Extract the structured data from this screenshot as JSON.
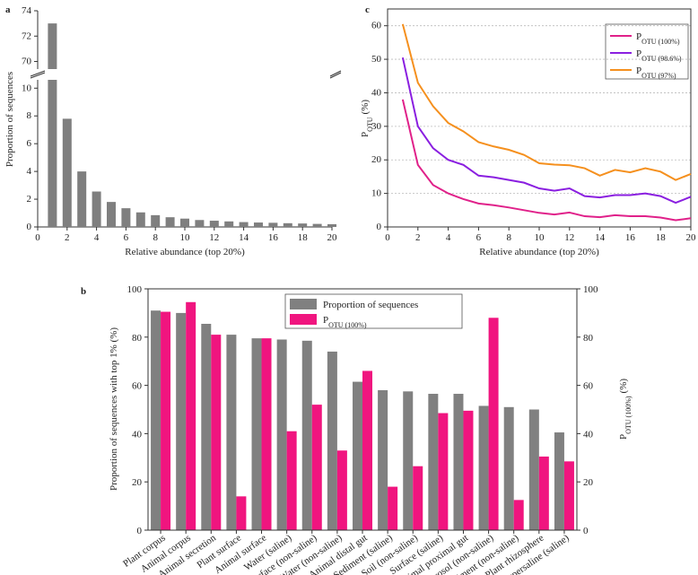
{
  "chart_data": [
    {
      "type": "bar",
      "label": "a",
      "xlabel": "Relative abundance (top 20%)",
      "ylabel": "Proportion of sequences",
      "x": [
        1,
        2,
        3,
        4,
        5,
        6,
        7,
        8,
        9,
        10,
        11,
        12,
        13,
        14,
        15,
        16,
        17,
        18,
        19,
        20
      ],
      "values": [
        73,
        7.8,
        4.0,
        2.55,
        1.8,
        1.35,
        1.05,
        0.85,
        0.7,
        0.6,
        0.5,
        0.45,
        0.4,
        0.35,
        0.32,
        0.3,
        0.27,
        0.25,
        0.22,
        0.2
      ],
      "color": "#7f7f7f",
      "xlim": [
        0,
        20
      ],
      "xticks": [
        0,
        2,
        4,
        6,
        8,
        10,
        12,
        14,
        16,
        18,
        20
      ],
      "ylim": [
        0,
        74
      ],
      "y_break": [
        10.6,
        69.4
      ],
      "yticks": [
        0,
        2,
        4,
        6,
        8,
        10,
        70,
        72,
        74
      ]
    },
    {
      "type": "bar",
      "label": "b",
      "ylabel": "Proportion of sequences with top 1% (%)",
      "y2label": "P",
      "y2label_subscript": "OTU (100%)",
      "y2label_suffix": "(%)",
      "categories": [
        "Plant corpus",
        "Animal corpus",
        "Animal secretion",
        "Plant surface",
        "Animal surface",
        "Water (saline)",
        "Surface (non-saline)",
        "Water (non-saline)",
        "Animal distal gut",
        "Sediment (saline)",
        "Soil (non-saline)",
        "Surface (saline)",
        "Animal proximal gut",
        "Aerosol (non-saline)",
        "Sediment (non-saline)",
        "Plant rhizosphere",
        "Hypersaline (saline)"
      ],
      "series": [
        {
          "name": "Proportion of sequences",
          "color": "#808080",
          "values": [
            91,
            90,
            85.5,
            81,
            79.5,
            79,
            78.5,
            74,
            61.5,
            58,
            57.5,
            56.5,
            56.5,
            51.5,
            51,
            50,
            40.5
          ]
        },
        {
          "name": "P",
          "name_subscript": "OTU (100%)",
          "color": "#f0157f",
          "axis": "y2",
          "values": [
            90.5,
            94.5,
            81,
            14,
            79.5,
            41,
            52,
            33,
            66,
            18,
            26.5,
            48.5,
            49.5,
            88,
            12.5,
            30.5,
            28.5
          ]
        }
      ],
      "ylim": [
        0,
        100
      ],
      "yticks": [
        0,
        20,
        40,
        60,
        80,
        100
      ],
      "y2lim": [
        0,
        100
      ],
      "y2ticks": [
        0,
        20,
        40,
        60,
        80,
        100
      ]
    },
    {
      "type": "line",
      "label": "c",
      "xlabel": "Relative abundance (top 20%)",
      "ylabel": "P",
      "ylabel_subscript": "OTU",
      "ylabel_suffix": "(%)",
      "x": [
        1,
        2,
        3,
        4,
        5,
        6,
        7,
        8,
        9,
        10,
        11,
        12,
        13,
        14,
        15,
        16,
        17,
        18,
        19,
        20
      ],
      "series": [
        {
          "name": "P",
          "name_subscript": "OTU (100%)",
          "color": "#e0218a",
          "values": [
            38,
            18.5,
            12.5,
            10,
            8.3,
            7,
            6.5,
            5.8,
            5,
            4.2,
            3.7,
            4.3,
            3.2,
            2.9,
            3.5,
            3.2,
            3.2,
            2.8,
            2,
            2.6
          ]
        },
        {
          "name": "P",
          "name_subscript": "OTU (98.6%)",
          "color": "#8a1fe0",
          "values": [
            50.5,
            30,
            23.5,
            20,
            18.5,
            15.3,
            14.8,
            14,
            13.2,
            11.5,
            10.8,
            11.5,
            9.2,
            8.8,
            9.5,
            9.5,
            10,
            9.2,
            7.2,
            9
          ]
        },
        {
          "name": "P",
          "name_subscript": "OTU (97%)",
          "color": "#f5901e",
          "values": [
            60.5,
            43,
            36,
            31,
            28.5,
            25.3,
            24,
            23,
            21.5,
            19,
            18.6,
            18.4,
            17.5,
            15.3,
            17,
            16.3,
            17.5,
            16.5,
            14,
            15.8
          ]
        }
      ],
      "xlim": [
        0,
        20
      ],
      "xticks": [
        0,
        2,
        4,
        6,
        8,
        10,
        12,
        14,
        16,
        18,
        20
      ],
      "ylim": [
        0,
        65
      ],
      "yticks": [
        0,
        10,
        20,
        30,
        40,
        50,
        60
      ],
      "grid": true
    }
  ]
}
